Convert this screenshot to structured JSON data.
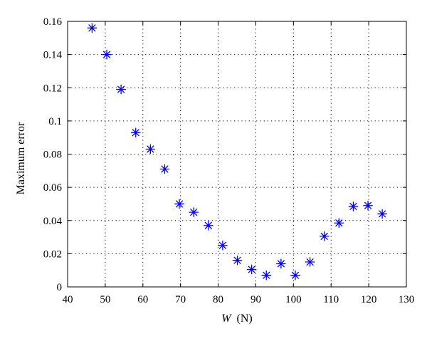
{
  "chart_data": {
    "type": "scatter",
    "title": "",
    "xlabel": "W",
    "xlabel_unit": "(N)",
    "ylabel": "Maximum error",
    "xlim": [
      40,
      130
    ],
    "ylim": [
      0,
      0.16
    ],
    "xticks": [
      40,
      50,
      60,
      70,
      80,
      90,
      100,
      110,
      120,
      130
    ],
    "yticks": [
      0,
      0.02,
      0.04,
      0.06,
      0.08,
      0.1,
      0.12,
      0.14,
      0.16
    ],
    "ytick_labels": [
      "0",
      "0.02",
      "0.04",
      "0.06",
      "0.08",
      "0.1",
      "0.12",
      "0.14",
      "0.16"
    ],
    "grid": true,
    "marker": "asterisk",
    "marker_color": "#0000ff",
    "series": [
      {
        "x": [
          46.5,
          50.4,
          54.2,
          58.1,
          62.0,
          65.8,
          69.7,
          73.5,
          77.4,
          81.2,
          85.1,
          88.9,
          92.8,
          96.7,
          100.5,
          104.4,
          108.2,
          112.1,
          115.9,
          119.8,
          123.6
        ],
        "y": [
          0.156,
          0.14,
          0.119,
          0.093,
          0.083,
          0.071,
          0.05,
          0.045,
          0.037,
          0.025,
          0.016,
          0.0105,
          0.007,
          0.014,
          0.007,
          0.015,
          0.0305,
          0.0385,
          0.0485,
          0.049,
          0.044
        ]
      }
    ]
  }
}
